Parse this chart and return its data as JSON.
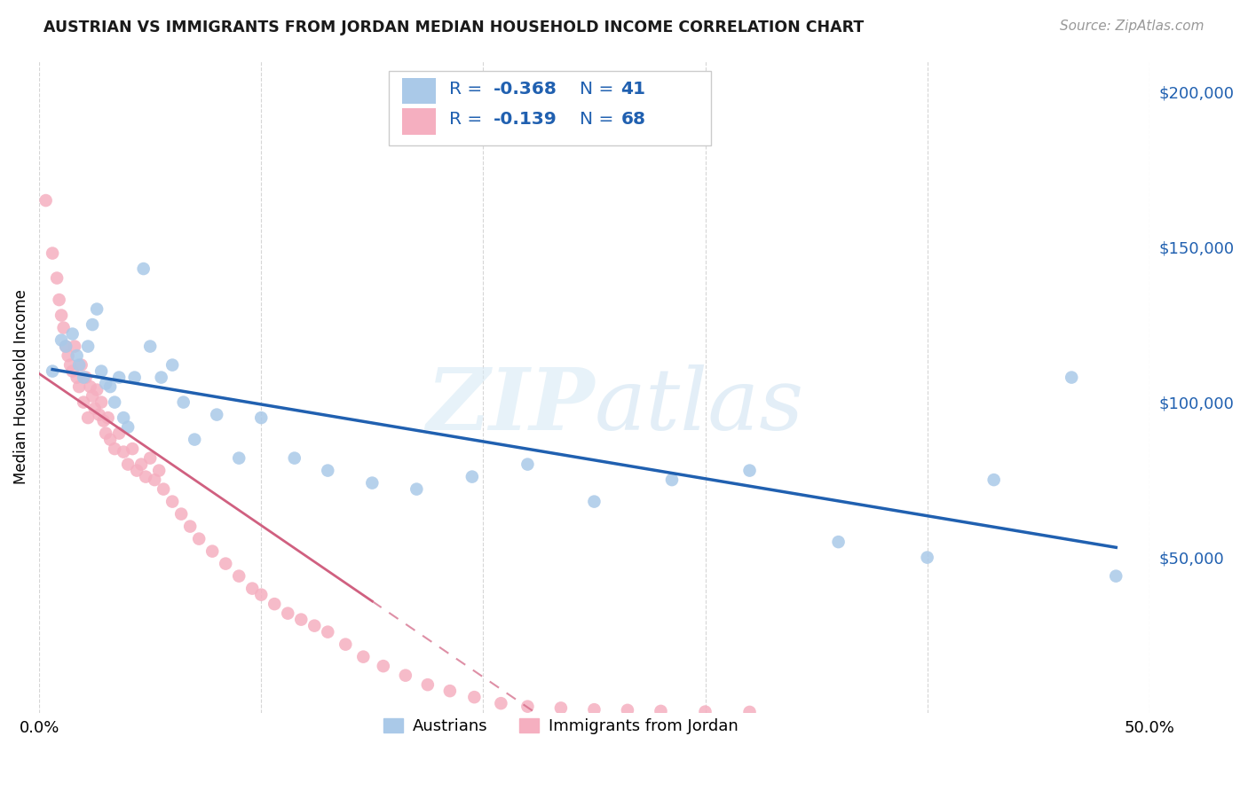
{
  "title": "AUSTRIAN VS IMMIGRANTS FROM JORDAN MEDIAN HOUSEHOLD INCOME CORRELATION CHART",
  "source": "Source: ZipAtlas.com",
  "ylabel": "Median Household Income",
  "yticks": [
    0,
    50000,
    100000,
    150000,
    200000
  ],
  "ytick_labels": [
    "",
    "$50,000",
    "$100,000",
    "$150,000",
    "$200,000"
  ],
  "xlim": [
    0.0,
    0.5
  ],
  "ylim": [
    0,
    210000
  ],
  "legend_blue_r": "-0.368",
  "legend_blue_n": "41",
  "legend_pink_r": "-0.139",
  "legend_pink_n": "68",
  "legend_label_blue": "Austrians",
  "legend_label_pink": "Immigrants from Jordan",
  "blue_color": "#aac9e8",
  "pink_color": "#f5afc0",
  "blue_line_color": "#2060b0",
  "pink_line_color": "#d06080",
  "watermark_zip": "ZIP",
  "watermark_atlas": "atlas",
  "blue_scatter_x": [
    0.006,
    0.01,
    0.012,
    0.015,
    0.017,
    0.018,
    0.02,
    0.022,
    0.024,
    0.026,
    0.028,
    0.03,
    0.032,
    0.034,
    0.036,
    0.038,
    0.04,
    0.043,
    0.047,
    0.05,
    0.055,
    0.06,
    0.065,
    0.07,
    0.08,
    0.09,
    0.1,
    0.115,
    0.13,
    0.15,
    0.17,
    0.195,
    0.22,
    0.25,
    0.285,
    0.32,
    0.36,
    0.4,
    0.43,
    0.465,
    0.485
  ],
  "blue_scatter_y": [
    110000,
    120000,
    118000,
    122000,
    115000,
    112000,
    108000,
    118000,
    125000,
    130000,
    110000,
    106000,
    105000,
    100000,
    108000,
    95000,
    92000,
    108000,
    143000,
    118000,
    108000,
    112000,
    100000,
    88000,
    96000,
    82000,
    95000,
    82000,
    78000,
    74000,
    72000,
    76000,
    80000,
    68000,
    75000,
    78000,
    55000,
    50000,
    75000,
    108000,
    44000
  ],
  "pink_scatter_x": [
    0.003,
    0.006,
    0.008,
    0.009,
    0.01,
    0.011,
    0.012,
    0.013,
    0.014,
    0.015,
    0.016,
    0.017,
    0.018,
    0.019,
    0.02,
    0.021,
    0.022,
    0.023,
    0.024,
    0.025,
    0.026,
    0.027,
    0.028,
    0.029,
    0.03,
    0.031,
    0.032,
    0.034,
    0.036,
    0.038,
    0.04,
    0.042,
    0.044,
    0.046,
    0.048,
    0.05,
    0.052,
    0.054,
    0.056,
    0.06,
    0.064,
    0.068,
    0.072,
    0.078,
    0.084,
    0.09,
    0.096,
    0.1,
    0.106,
    0.112,
    0.118,
    0.124,
    0.13,
    0.138,
    0.146,
    0.155,
    0.165,
    0.175,
    0.185,
    0.196,
    0.208,
    0.22,
    0.235,
    0.25,
    0.265,
    0.28,
    0.3,
    0.32
  ],
  "pink_scatter_y": [
    165000,
    148000,
    140000,
    133000,
    128000,
    124000,
    118000,
    115000,
    112000,
    110000,
    118000,
    108000,
    105000,
    112000,
    100000,
    108000,
    95000,
    105000,
    102000,
    98000,
    104000,
    96000,
    100000,
    94000,
    90000,
    95000,
    88000,
    85000,
    90000,
    84000,
    80000,
    85000,
    78000,
    80000,
    76000,
    82000,
    75000,
    78000,
    72000,
    68000,
    64000,
    60000,
    56000,
    52000,
    48000,
    44000,
    40000,
    38000,
    35000,
    32000,
    30000,
    28000,
    26000,
    22000,
    18000,
    15000,
    12000,
    9000,
    7000,
    5000,
    3000,
    2000,
    1500,
    1000,
    800,
    500,
    300,
    200
  ]
}
